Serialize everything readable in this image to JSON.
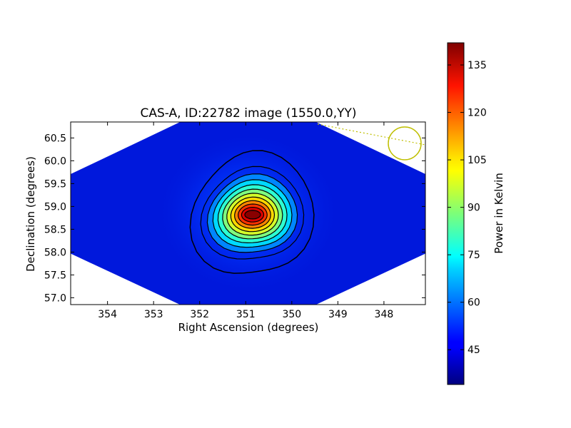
{
  "chart_data": {
    "type": "heatmap",
    "title": "CAS-A, ID:22782 image (1550.0,YY)",
    "xlabel": "Right Ascension (degrees)",
    "ylabel": "Declination (degrees)",
    "xlim": [
      354.8,
      347.1
    ],
    "ylim": [
      56.85,
      60.85
    ],
    "x_ticks": [
      {
        "value": 354,
        "label": "354"
      },
      {
        "value": 353,
        "label": "353"
      },
      {
        "value": 352,
        "label": "352"
      },
      {
        "value": 351,
        "label": "351"
      },
      {
        "value": 350,
        "label": "350"
      },
      {
        "value": 349,
        "label": "349"
      },
      {
        "value": 348,
        "label": "348"
      }
    ],
    "y_ticks": [
      {
        "value": 57.0,
        "label": "57.0"
      },
      {
        "value": 57.5,
        "label": "57.5"
      },
      {
        "value": 58.0,
        "label": "58.0"
      },
      {
        "value": 58.5,
        "label": "58.5"
      },
      {
        "value": 59.0,
        "label": "59.0"
      },
      {
        "value": 59.5,
        "label": "59.5"
      },
      {
        "value": 60.0,
        "label": "60.0"
      },
      {
        "value": 60.5,
        "label": "60.5"
      }
    ],
    "colorbar": {
      "label": "Power in Kelvin",
      "colormap": "jet",
      "range": [
        34,
        142
      ],
      "ticks": [
        {
          "value": 45,
          "label": "45"
        },
        {
          "value": 60,
          "label": "60"
        },
        {
          "value": 75,
          "label": "75"
        },
        {
          "value": 90,
          "label": "90"
        },
        {
          "value": 105,
          "label": "105"
        },
        {
          "value": 120,
          "label": "120"
        },
        {
          "value": 135,
          "label": "135"
        }
      ]
    },
    "source": {
      "ra_center": 350.85,
      "dec_center": 58.82,
      "peak_kelvin": 141,
      "background_kelvin": 38,
      "contour_count": 12
    },
    "beam_marker": {
      "ra": 347.5,
      "dec": 60.38,
      "color": "#bfbf00"
    },
    "grid": false
  }
}
